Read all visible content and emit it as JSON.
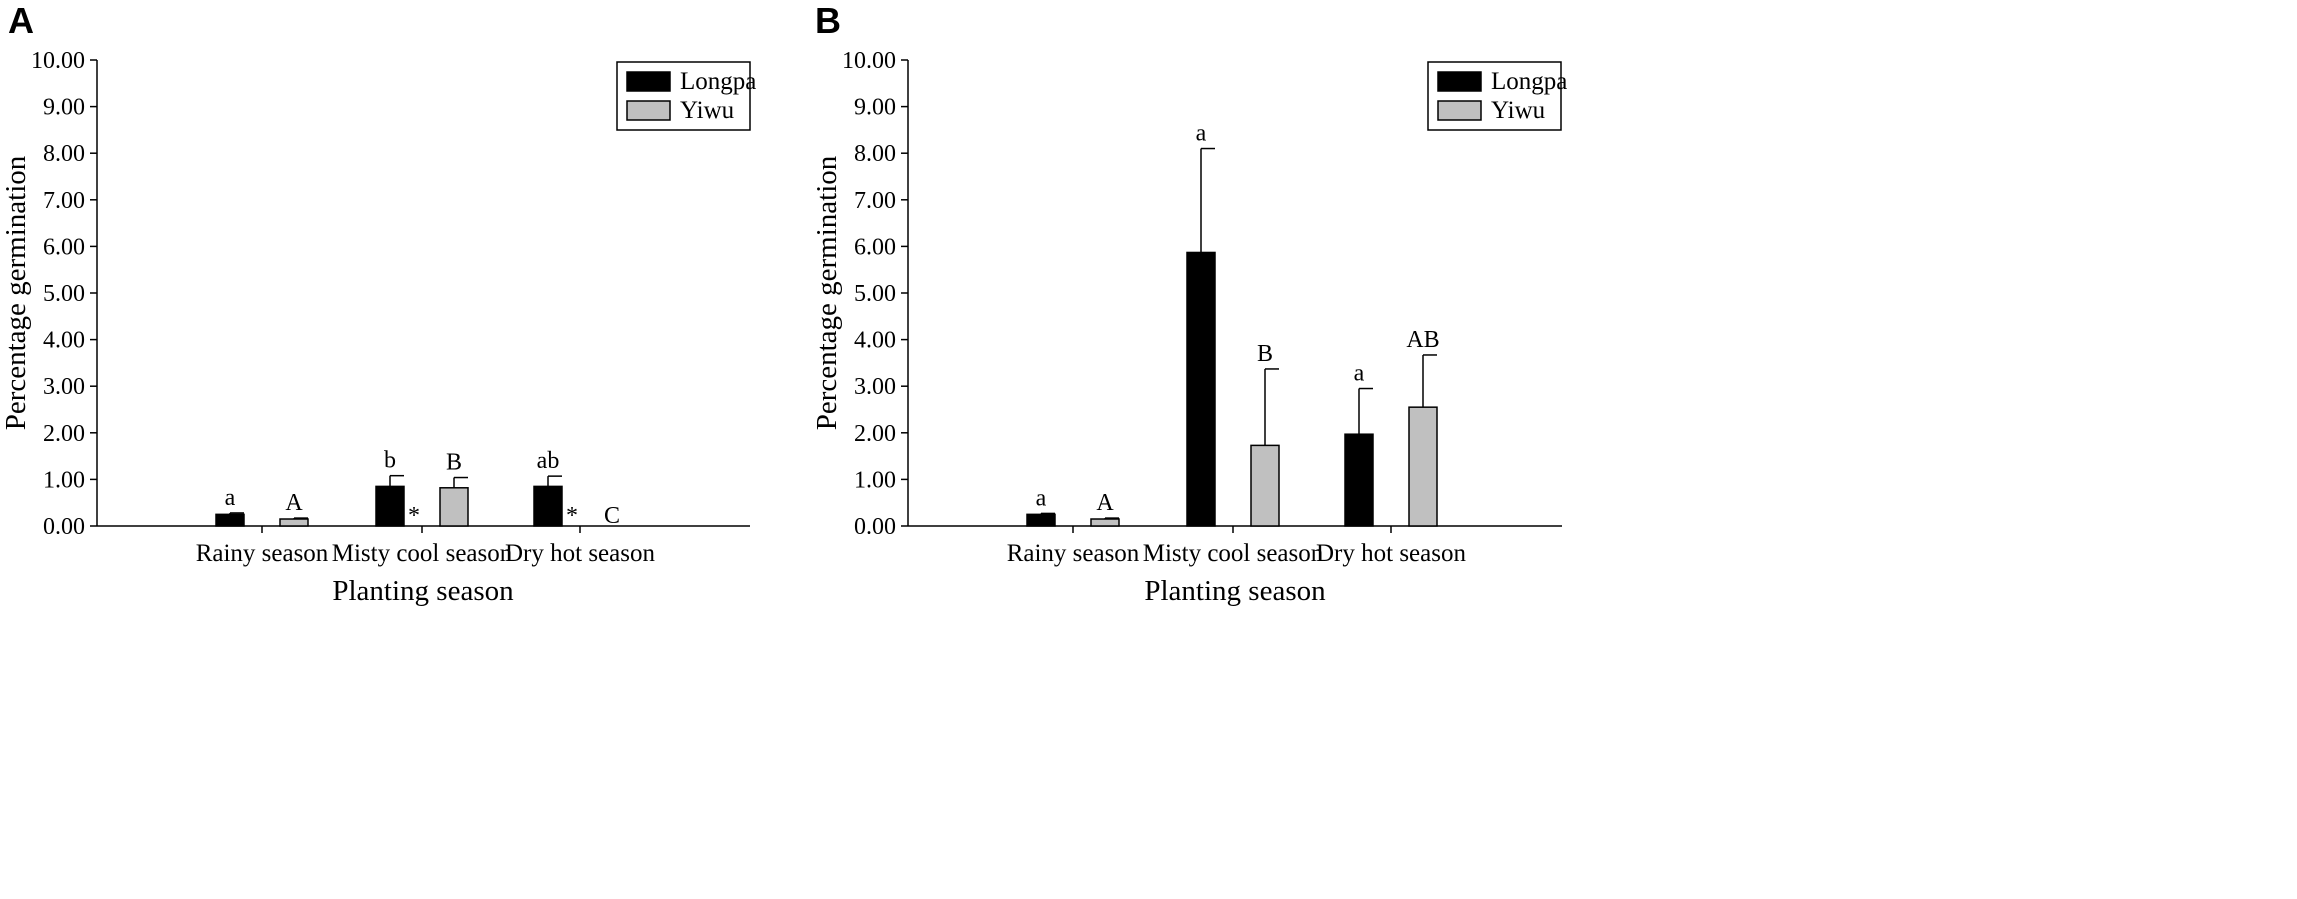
{
  "colors": {
    "series_longpa": "#000000",
    "series_yiwu": "#c0c0c0",
    "axis": "#000000"
  },
  "chart_data": [
    {
      "panel": "A",
      "type": "bar",
      "xlabel": "Planting season",
      "ylabel": "Percentage germination",
      "ylim": [
        0,
        10
      ],
      "yticks": [
        "0.00",
        "1.00",
        "2.00",
        "3.00",
        "4.00",
        "5.00",
        "6.00",
        "7.00",
        "8.00",
        "9.00",
        "10.00"
      ],
      "categories": [
        "Rainy season",
        "Misty cool season",
        "Dry hot season"
      ],
      "legend_position": "top-right",
      "series": [
        {
          "name": "Longpa",
          "values": [
            0.25,
            0.85,
            0.85
          ],
          "errors": [
            0.03,
            0.23,
            0.22
          ],
          "labels": [
            "a",
            "b",
            "ab"
          ],
          "markers": [
            "",
            "*",
            "*"
          ]
        },
        {
          "name": "Yiwu",
          "values": [
            0.15,
            0.82,
            0
          ],
          "errors": [
            0.02,
            0.22,
            0
          ],
          "labels": [
            "A",
            "B",
            "C"
          ],
          "markers": [
            "",
            "",
            ""
          ]
        }
      ]
    },
    {
      "panel": "B",
      "type": "bar",
      "xlabel": "Planting season",
      "ylabel": "Percentage germination",
      "ylim": [
        0,
        10
      ],
      "yticks": [
        "0.00",
        "1.00",
        "2.00",
        "3.00",
        "4.00",
        "5.00",
        "6.00",
        "7.00",
        "8.00",
        "9.00",
        "10.00"
      ],
      "categories": [
        "Rainy season",
        "Misty cool season",
        "Dry hot season"
      ],
      "legend_position": "top-right",
      "series": [
        {
          "name": "Longpa",
          "values": [
            0.25,
            5.87,
            1.97
          ],
          "errors": [
            0.02,
            2.23,
            0.98
          ],
          "labels": [
            "a",
            "a",
            "a"
          ],
          "markers": [
            "",
            "",
            ""
          ]
        },
        {
          "name": "Yiwu",
          "values": [
            0.15,
            1.73,
            2.55
          ],
          "errors": [
            0.02,
            1.64,
            1.12
          ],
          "labels": [
            "A",
            "B",
            "AB"
          ],
          "markers": [
            "",
            "",
            ""
          ]
        }
      ]
    }
  ]
}
